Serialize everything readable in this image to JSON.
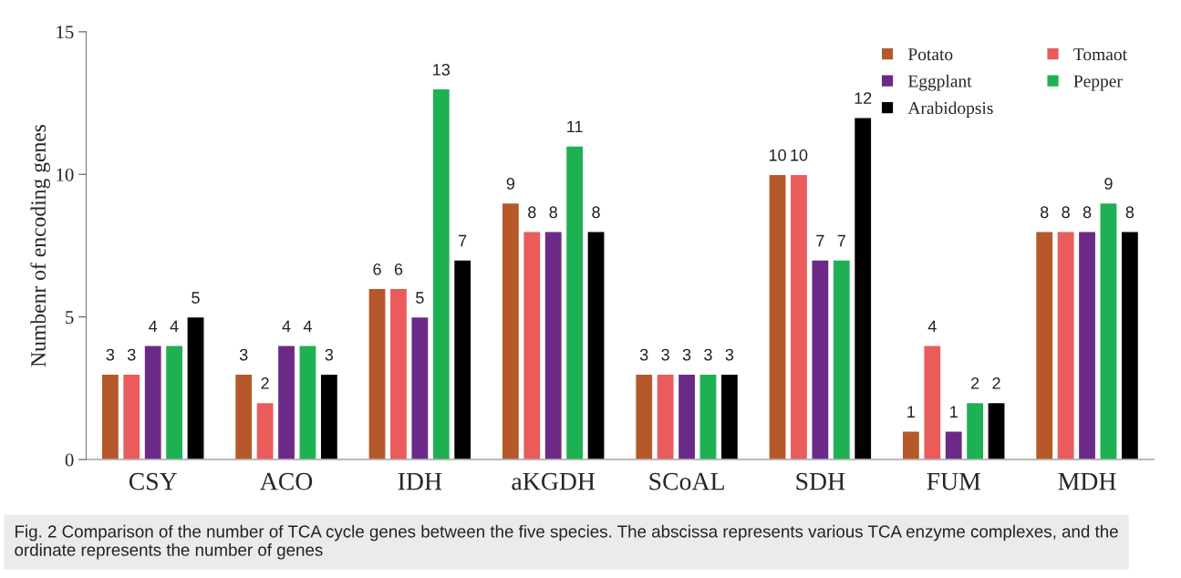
{
  "chart_data": {
    "type": "bar",
    "ylabel": "Numbenr of encoding genes",
    "categories": [
      "CSY",
      "ACO",
      "IDH",
      "aKGDH",
      "SCoAL",
      "SDH",
      "FUM",
      "MDH"
    ],
    "series": [
      {
        "name": "Potato",
        "color": "#b5592a",
        "values": [
          3,
          3,
          6,
          9,
          3,
          10,
          1,
          8
        ]
      },
      {
        "name": "Tomaot",
        "color": "#ea5b5b",
        "values": [
          3,
          2,
          6,
          8,
          3,
          10,
          4,
          8
        ]
      },
      {
        "name": "Eggplant",
        "color": "#6b2a87",
        "values": [
          4,
          4,
          5,
          8,
          3,
          7,
          1,
          8
        ]
      },
      {
        "name": "Pepper",
        "color": "#1db153",
        "values": [
          4,
          4,
          13,
          11,
          3,
          7,
          2,
          9
        ]
      },
      {
        "name": "Arabidopsis",
        "color": "#000000",
        "values": [
          5,
          3,
          7,
          8,
          3,
          12,
          2,
          8
        ]
      }
    ],
    "ylim": [
      0,
      15
    ],
    "yticks": [
      0,
      5,
      10,
      15
    ],
    "grid": false,
    "legend": "top right",
    "data_labels": true,
    "annotations": [
      "Fig. 2 Comparison of the number of TCA cycle genes between the five species. The abscissa represents various TCA enzyme complexes, and the ordinate represents the number of genes"
    ]
  }
}
